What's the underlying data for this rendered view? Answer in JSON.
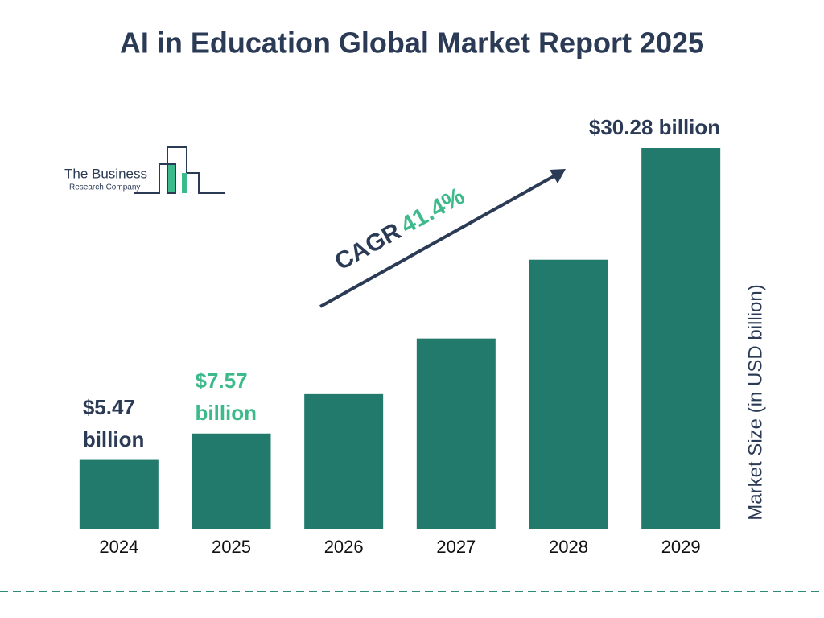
{
  "chart_data": {
    "type": "bar",
    "title": "AI in Education Global Market Report 2025",
    "categories": [
      "2024",
      "2025",
      "2026",
      "2027",
      "2028",
      "2029"
    ],
    "values": [
      5.47,
      7.57,
      10.7,
      15.13,
      21.4,
      30.28
    ],
    "value_labels": [
      "$5.47 billion",
      "$7.57 billion",
      null,
      null,
      null,
      "$30.28 billion"
    ],
    "value_label_colors": [
      "#2b3a55",
      "#3dba8b",
      null,
      null,
      null,
      "#2b3a55"
    ],
    "color": "#217a6b",
    "ylim": [
      0,
      30.28
    ],
    "y_axis_label": "Market Size (in USD billion)",
    "annotation": {
      "label": "CAGR",
      "value": "41.4%"
    }
  },
  "logo": {
    "line1": "The Business",
    "line2": "Research Company"
  }
}
